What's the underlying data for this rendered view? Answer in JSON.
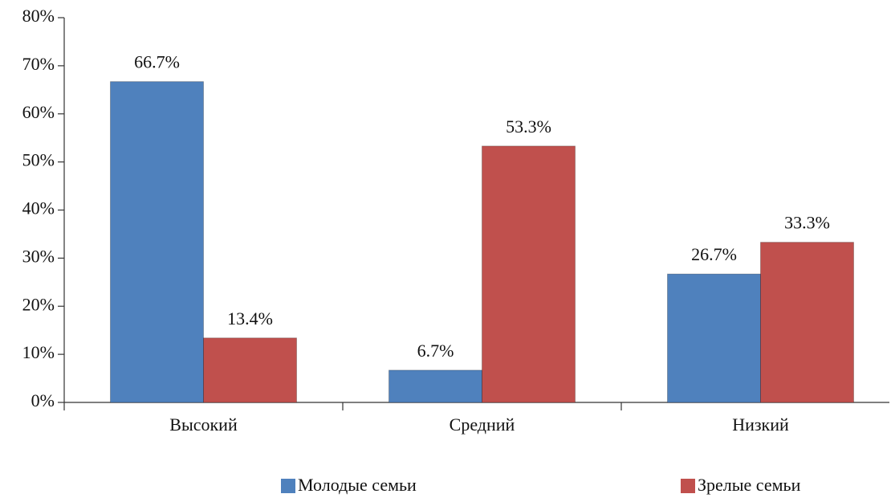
{
  "chart_data": {
    "type": "bar",
    "categories": [
      "Высокий",
      "Средний",
      "Низкий"
    ],
    "series": [
      {
        "name": "Молодые семьи",
        "color": "#4f81bd",
        "values": [
          66.7,
          6.7,
          26.7
        ],
        "value_labels": [
          "66.7%",
          "6.7%",
          "26.7%"
        ]
      },
      {
        "name": "Зрелые семьи",
        "color": "#c0504d",
        "values": [
          13.4,
          53.3,
          33.3
        ],
        "value_labels": [
          "13.4%",
          "53.3%",
          "33.3%"
        ]
      }
    ],
    "ylim": [
      0,
      80
    ],
    "yticks": [
      {
        "value": 0,
        "label": "0%"
      },
      {
        "value": 10,
        "label": "10%"
      },
      {
        "value": 20,
        "label": "20%"
      },
      {
        "value": 30,
        "label": "30%"
      },
      {
        "value": 40,
        "label": "40%"
      },
      {
        "value": 50,
        "label": "50%"
      },
      {
        "value": 60,
        "label": "60%"
      },
      {
        "value": 70,
        "label": "70%"
      },
      {
        "value": 80,
        "label": "80%"
      }
    ],
    "legend": "bottom"
  }
}
